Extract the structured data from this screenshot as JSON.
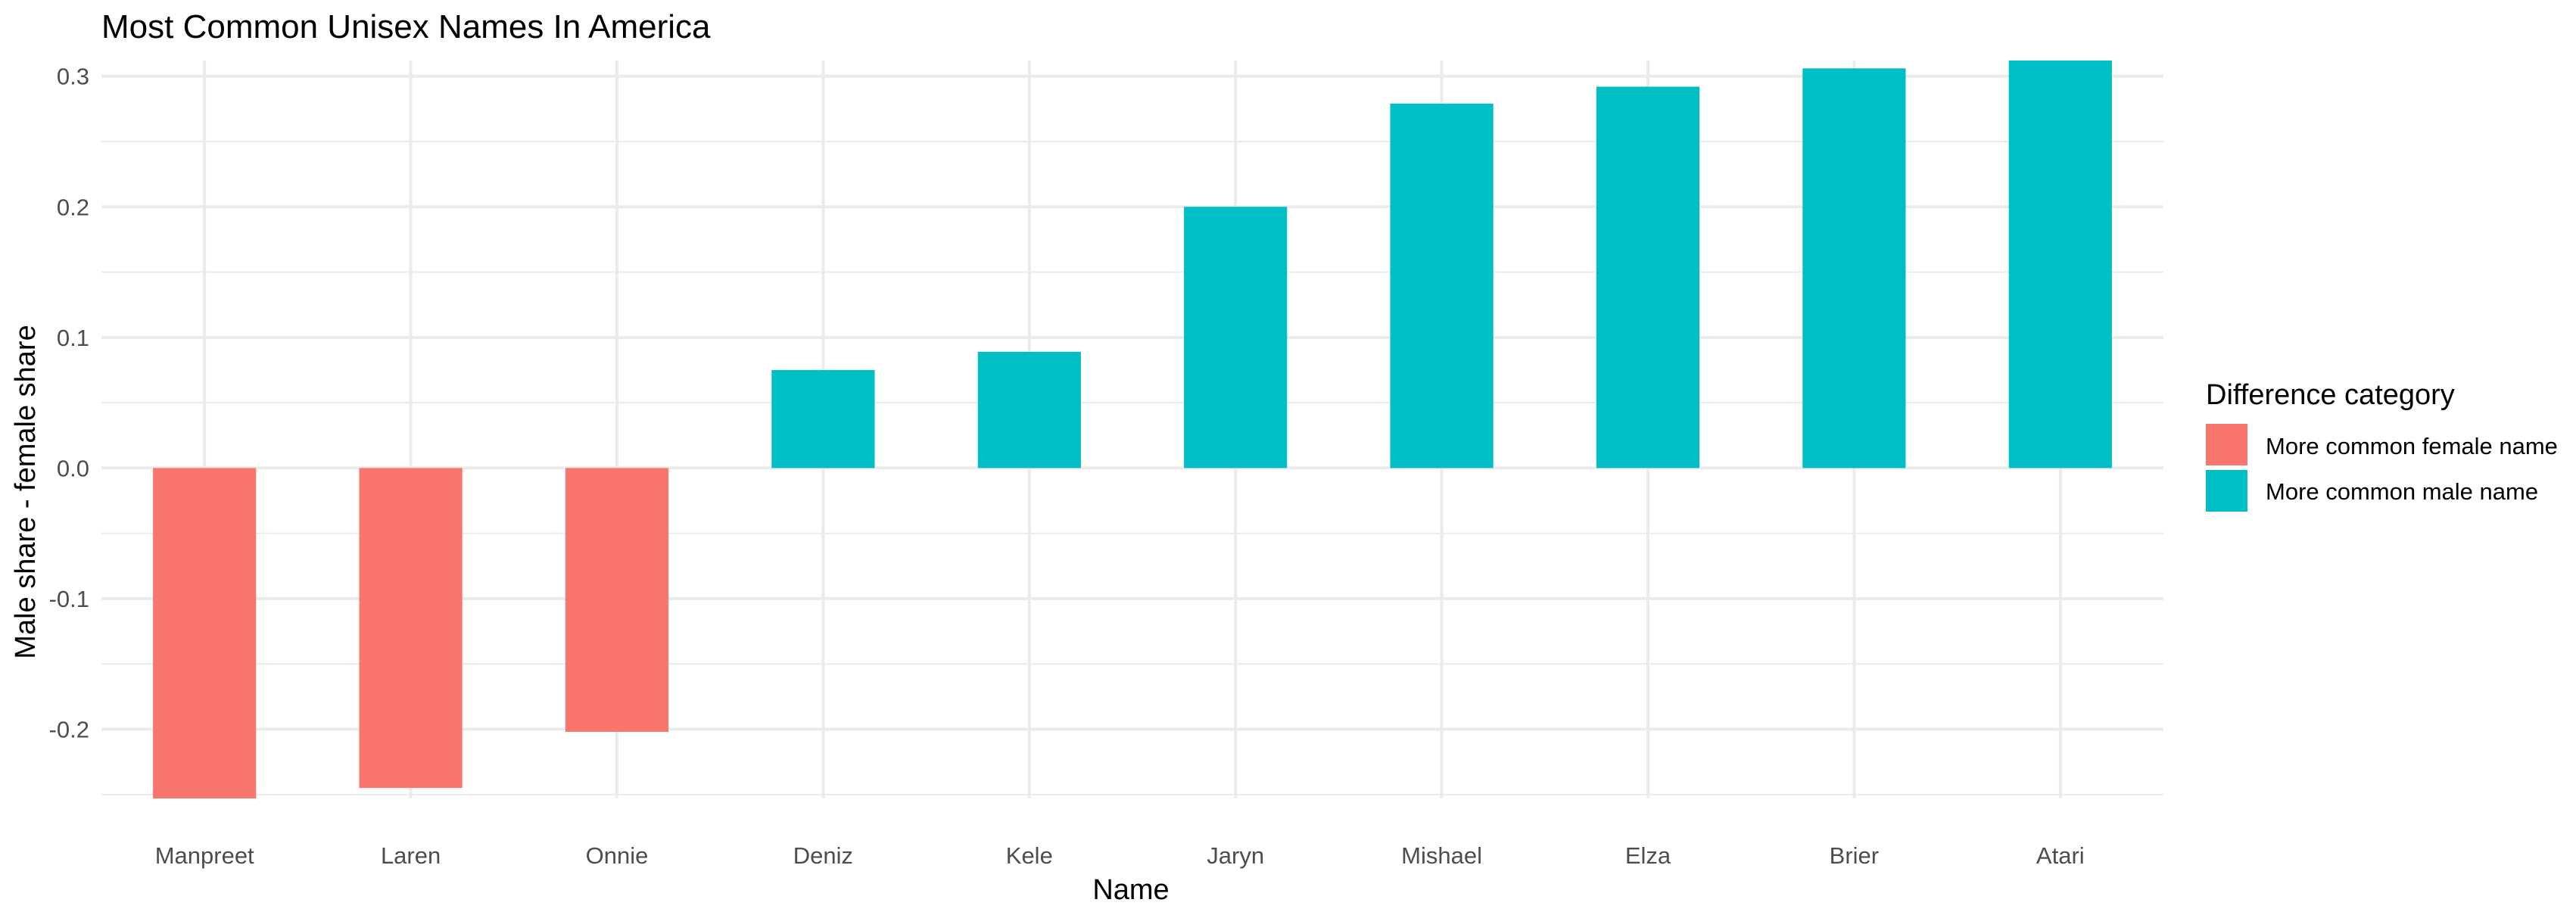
{
  "chart_data": {
    "type": "bar",
    "title": "Most Common Unisex Names In America",
    "xlabel": "Name",
    "ylabel": "Male share - female share",
    "categories": [
      "Manpreet",
      "Laren",
      "Onnie",
      "Deniz",
      "Kele",
      "Jaryn",
      "Mishael",
      "Elza",
      "Brier",
      "Atari"
    ],
    "values": [
      -0.253,
      -0.245,
      -0.202,
      0.075,
      0.089,
      0.2,
      0.279,
      0.292,
      0.306,
      0.312
    ],
    "groups": [
      "More common female name",
      "More common female name",
      "More common female name",
      "More common male name",
      "More common male name",
      "More common male name",
      "More common male name",
      "More common male name",
      "More common male name",
      "More common male name"
    ],
    "ylim": [
      -0.253,
      0.312
    ],
    "yticks": [
      -0.2,
      -0.1,
      0.0,
      0.1,
      0.2,
      0.3
    ],
    "ytick_labels": [
      "-0.2",
      "-0.1",
      "0.0",
      "0.1",
      "0.2",
      "0.3"
    ],
    "grid": true,
    "legend": {
      "title": "Difference category",
      "position": "right",
      "entries": [
        {
          "label": "More common female name",
          "color": "#F8766D"
        },
        {
          "label": "More common male name",
          "color": "#00BFC4"
        }
      ]
    }
  }
}
